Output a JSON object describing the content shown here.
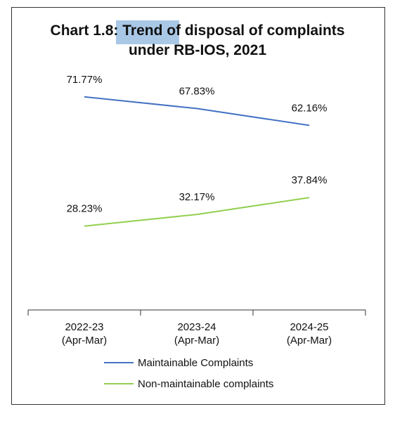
{
  "chart_data": {
    "type": "line",
    "title": "Chart 1.8: Trend of disposal of complaints under RB-IOS, 2021",
    "categories": [
      "2022-23\n(Apr-Mar)",
      "2023-24\n(Apr-Mar)",
      "2024-25\n(Apr-Mar)"
    ],
    "series": [
      {
        "name": "Maintainable Complaints",
        "color": "#4472c4",
        "values": [
          71.77,
          67.83,
          62.16
        ],
        "value_labels": [
          "71.77%",
          "67.83%",
          "62.16%"
        ]
      },
      {
        "name": "Non-maintainable complaints",
        "color": "#92d050",
        "values": [
          28.23,
          32.17,
          37.84
        ],
        "value_labels": [
          "28.23%",
          "32.17%",
          "37.84%"
        ]
      }
    ],
    "ylim": [
      0,
      80
    ],
    "legend": "bottom"
  }
}
